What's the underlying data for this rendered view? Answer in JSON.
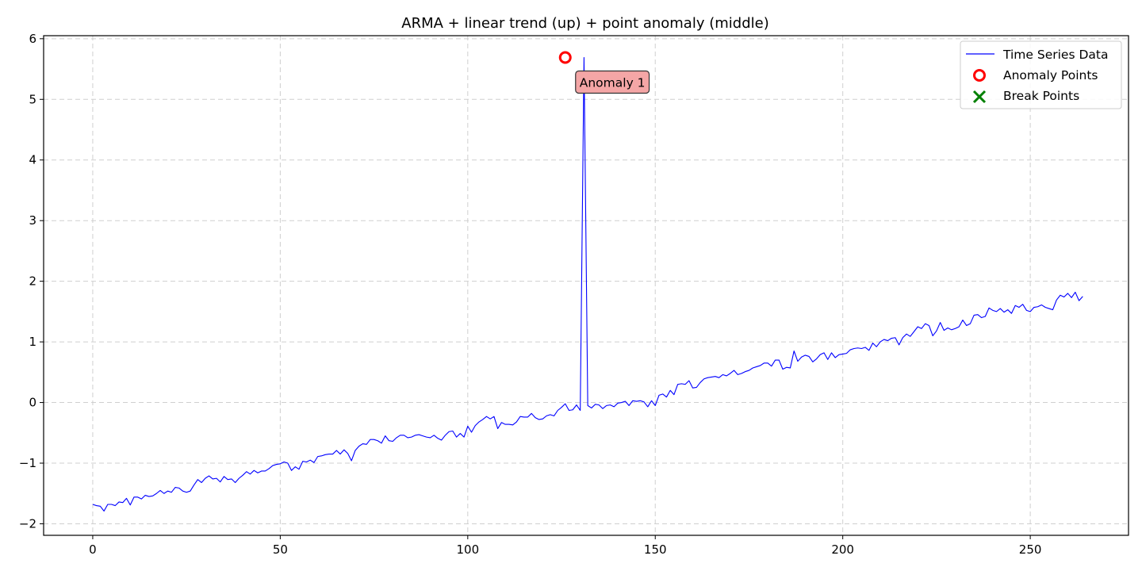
{
  "chart_data": {
    "type": "line",
    "title": "ARMA + linear trend (up) + point anomaly (middle)",
    "xlabel": "",
    "ylabel": "",
    "xlim": [
      -13.1,
      276.2
    ],
    "ylim": [
      -2.19,
      6.05
    ],
    "xticks": [
      0,
      50,
      100,
      150,
      200,
      250
    ],
    "yticks": [
      -2,
      -1,
      0,
      1,
      2,
      3,
      4,
      5,
      6
    ],
    "xtick_labels": [
      "0",
      "50",
      "100",
      "150",
      "200",
      "250"
    ],
    "ytick_labels": [
      "−2",
      "−1",
      "0",
      "1",
      "2",
      "3",
      "4",
      "5",
      "6"
    ],
    "grid": true,
    "legend_position": "top-right",
    "series": [
      {
        "name": "Time Series Data",
        "color": "#0000ff",
        "y": [
          -1.68,
          -1.7,
          -1.71,
          -1.79,
          -1.68,
          -1.68,
          -1.7,
          -1.64,
          -1.65,
          -1.58,
          -1.69,
          -1.56,
          -1.56,
          -1.59,
          -1.53,
          -1.55,
          -1.54,
          -1.5,
          -1.45,
          -1.5,
          -1.46,
          -1.48,
          -1.4,
          -1.41,
          -1.46,
          -1.48,
          -1.46,
          -1.36,
          -1.27,
          -1.32,
          -1.25,
          -1.21,
          -1.26,
          -1.25,
          -1.31,
          -1.22,
          -1.27,
          -1.26,
          -1.32,
          -1.25,
          -1.2,
          -1.14,
          -1.18,
          -1.12,
          -1.16,
          -1.13,
          -1.13,
          -1.09,
          -1.04,
          -1.02,
          -1.01,
          -0.98,
          -1.0,
          -1.12,
          -1.06,
          -1.1,
          -0.97,
          -0.98,
          -0.95,
          -0.99,
          -0.89,
          -0.88,
          -0.86,
          -0.85,
          -0.85,
          -0.79,
          -0.85,
          -0.78,
          -0.84,
          -0.96,
          -0.79,
          -0.72,
          -0.68,
          -0.69,
          -0.61,
          -0.61,
          -0.63,
          -0.67,
          -0.55,
          -0.63,
          -0.64,
          -0.58,
          -0.54,
          -0.54,
          -0.58,
          -0.57,
          -0.54,
          -0.53,
          -0.55,
          -0.57,
          -0.58,
          -0.54,
          -0.59,
          -0.62,
          -0.54,
          -0.48,
          -0.47,
          -0.57,
          -0.51,
          -0.57,
          -0.39,
          -0.49,
          -0.38,
          -0.32,
          -0.28,
          -0.23,
          -0.27,
          -0.23,
          -0.43,
          -0.33,
          -0.36,
          -0.36,
          -0.37,
          -0.32,
          -0.23,
          -0.24,
          -0.24,
          -0.18,
          -0.25,
          -0.28,
          -0.27,
          -0.22,
          -0.2,
          -0.22,
          -0.13,
          -0.08,
          -0.02,
          -0.13,
          -0.12,
          -0.04,
          -0.13,
          5.69,
          -0.05,
          -0.09,
          -0.03,
          -0.04,
          -0.1,
          -0.05,
          -0.04,
          -0.07,
          -0.01,
          0.0,
          0.02,
          -0.05,
          0.03,
          0.02,
          0.03,
          0.01,
          -0.07,
          0.03,
          -0.05,
          0.12,
          0.14,
          0.09,
          0.2,
          0.13,
          0.3,
          0.31,
          0.3,
          0.36,
          0.24,
          0.25,
          0.33,
          0.39,
          0.41,
          0.42,
          0.43,
          0.41,
          0.46,
          0.44,
          0.48,
          0.53,
          0.46,
          0.48,
          0.51,
          0.53,
          0.57,
          0.59,
          0.61,
          0.65,
          0.65,
          0.6,
          0.7,
          0.7,
          0.55,
          0.58,
          0.57,
          0.85,
          0.68,
          0.75,
          0.78,
          0.76,
          0.67,
          0.72,
          0.79,
          0.82,
          0.71,
          0.82,
          0.74,
          0.79,
          0.8,
          0.81,
          0.87,
          0.89,
          0.9,
          0.89,
          0.91,
          0.86,
          0.98,
          0.92,
          1.0,
          1.04,
          1.02,
          1.06,
          1.07,
          0.95,
          1.07,
          1.13,
          1.09,
          1.17,
          1.25,
          1.22,
          1.3,
          1.27,
          1.1,
          1.18,
          1.32,
          1.19,
          1.23,
          1.2,
          1.22,
          1.25,
          1.36,
          1.27,
          1.3,
          1.44,
          1.45,
          1.4,
          1.42,
          1.56,
          1.52,
          1.5,
          1.55,
          1.49,
          1.53,
          1.47,
          1.6,
          1.57,
          1.62,
          1.52,
          1.5,
          1.57,
          1.58,
          1.61,
          1.57,
          1.55,
          1.53,
          1.69,
          1.77,
          1.74,
          1.8,
          1.73,
          1.82,
          1.68,
          1.75
        ]
      }
    ],
    "anomaly_points": [
      {
        "x": 126,
        "y": 5.69
      }
    ],
    "break_points": [],
    "annotations": [
      {
        "text": "Anomaly 1",
        "x": 126,
        "y": 5.69
      }
    ],
    "legend_entries": [
      "Time Series Data",
      "Anomaly Points",
      "Break Points"
    ],
    "colors": {
      "line": "#0000ff",
      "anomaly": "#ff0000",
      "break": "#008000",
      "annotation_fill": "#f4a6a6",
      "grid": "#cfcfcf"
    }
  }
}
